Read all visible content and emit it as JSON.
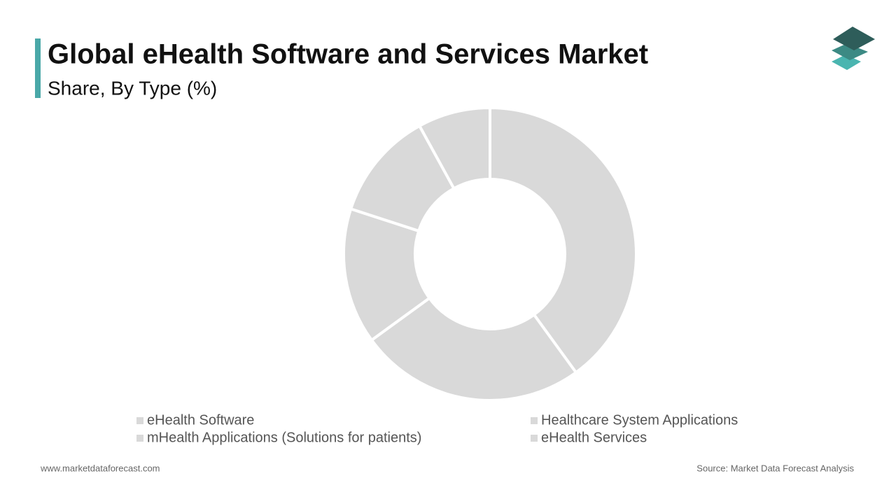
{
  "chart_data": {
    "type": "donut",
    "title": "Global eHealth Software and Services Market",
    "subtitle": "Share, By Type (%)",
    "categories": [
      "eHealth Software",
      "Healthcare System Applications",
      "mHealth Applications (Solutions for patients)",
      "eHealth Services",
      null
    ],
    "values": [
      40,
      25,
      15,
      12,
      8
    ],
    "color": "#d9d9d9"
  },
  "footer": {
    "website": "www.marketdataforecast.com",
    "source": "Source: Market Data Forecast Analysis"
  }
}
